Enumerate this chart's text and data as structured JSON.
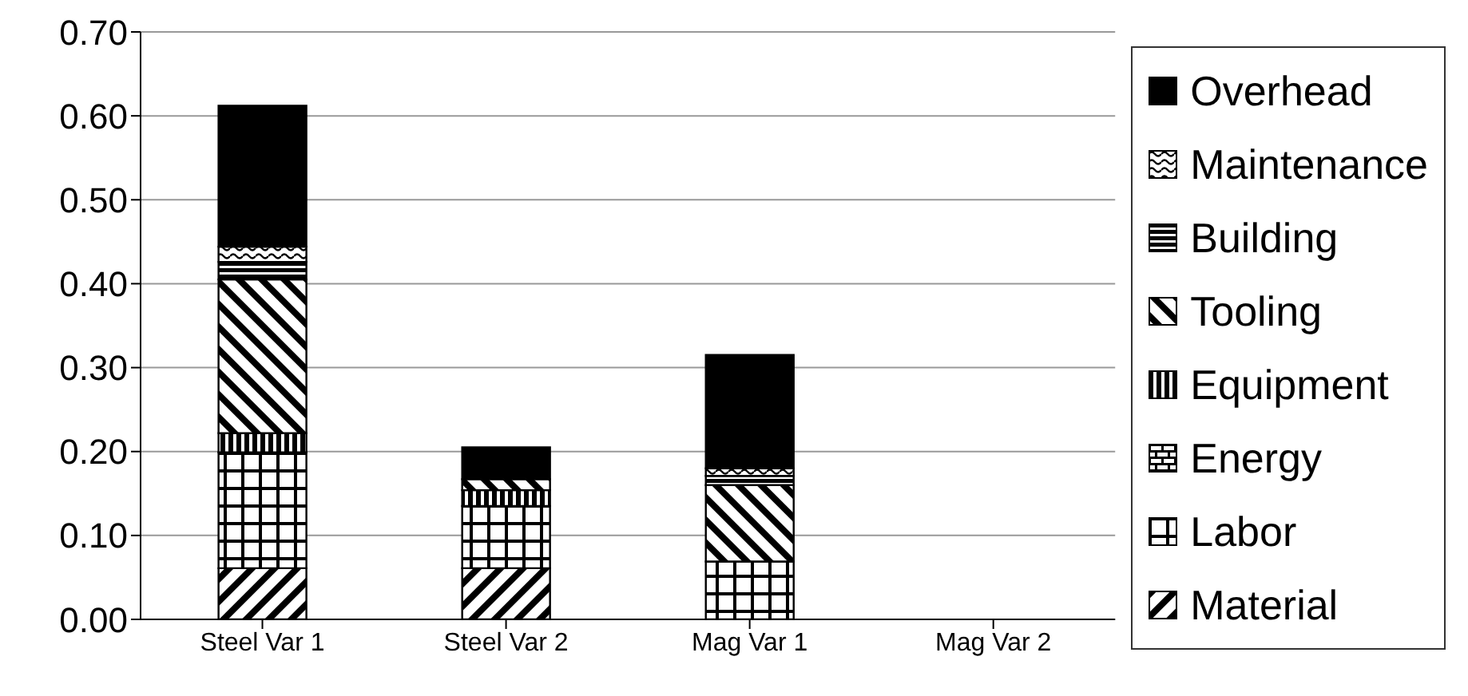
{
  "chart_data": {
    "type": "bar",
    "stacked": true,
    "categories": [
      "Steel Var 1",
      "Steel Var 2",
      "Mag Var 1",
      "Mag Var 2"
    ],
    "series": [
      {
        "name": "Material",
        "color": "#000000",
        "values": [
          0.061,
          0.061,
          0,
          null
        ]
      },
      {
        "name": "Labor",
        "color": "#000000",
        "values": [
          0.138,
          0.074,
          0.069,
          null
        ]
      },
      {
        "name": "Energy",
        "color": "#000000",
        "values": [
          0,
          0,
          0,
          null
        ]
      },
      {
        "name": "Equipment",
        "color": "#000000",
        "values": [
          0.023,
          0.019,
          0,
          null
        ]
      },
      {
        "name": "Tooling",
        "color": "#000000",
        "values": [
          0.183,
          0.013,
          0.091,
          null
        ]
      },
      {
        "name": "Building",
        "color": "#000000",
        "values": [
          0.021,
          0,
          0.011,
          null
        ]
      },
      {
        "name": "Maintenance",
        "color": "#000000",
        "values": [
          0.018,
          0,
          0.009,
          null
        ]
      },
      {
        "name": "Overhead",
        "color": "#000000",
        "values": [
          0.168,
          0.038,
          0.135,
          null
        ]
      }
    ],
    "ylim": [
      0,
      0.7
    ],
    "yticks": [
      {
        "value": 0,
        "label": "0.00"
      },
      {
        "value": 0.1,
        "label": "0.10"
      },
      {
        "value": 0.2,
        "label": "0.20"
      },
      {
        "value": 0.3,
        "label": "0.30"
      },
      {
        "value": 0.4,
        "label": "0.40"
      },
      {
        "value": 0.5,
        "label": "0.50"
      },
      {
        "value": 0.6,
        "label": "0.60"
      },
      {
        "value": 0.7,
        "label": "0.70"
      }
    ],
    "grid": "y",
    "legend": "right"
  }
}
